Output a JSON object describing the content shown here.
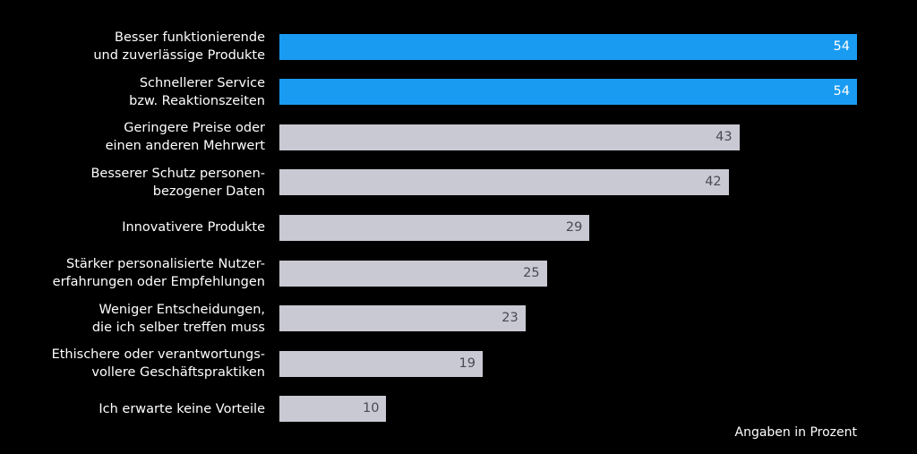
{
  "chart_data": {
    "type": "bar",
    "orientation": "horizontal",
    "categories": [
      "Besser funktionierende\nund zuverlässige Produkte",
      "Schnellerer Service\nbzw. Reaktionszeiten",
      "Geringere Preise oder\neinen anderen Mehrwert",
      "Besserer Schutz personen-\nbezogener Daten",
      "Innovativere Produkte",
      "Stärker personalisierte Nutzer-\nerfahrungen oder Empfehlungen",
      "Weniger Entscheidungen,\ndie ich selber treffen muss",
      "Ethischere oder verantwortungs-\nvollere Geschäftspraktiken",
      "Ich erwarte keine Vorteile"
    ],
    "values": [
      54,
      54,
      43,
      42,
      29,
      25,
      23,
      19,
      10
    ],
    "colors": [
      "#1a9bf2",
      "#1a9bf2",
      "#c9c9d3",
      "#c9c9d3",
      "#c9c9d3",
      "#c9c9d3",
      "#c9c9d3",
      "#c9c9d3",
      "#c9c9d3"
    ],
    "value_label_colors": [
      "#ffffff",
      "#ffffff",
      "#4a4a55",
      "#4a4a55",
      "#4a4a55",
      "#4a4a55",
      "#4a4a55",
      "#4a4a55",
      "#4a4a55"
    ],
    "xlim": [
      0,
      54
    ],
    "note": "Angaben in Prozent"
  }
}
